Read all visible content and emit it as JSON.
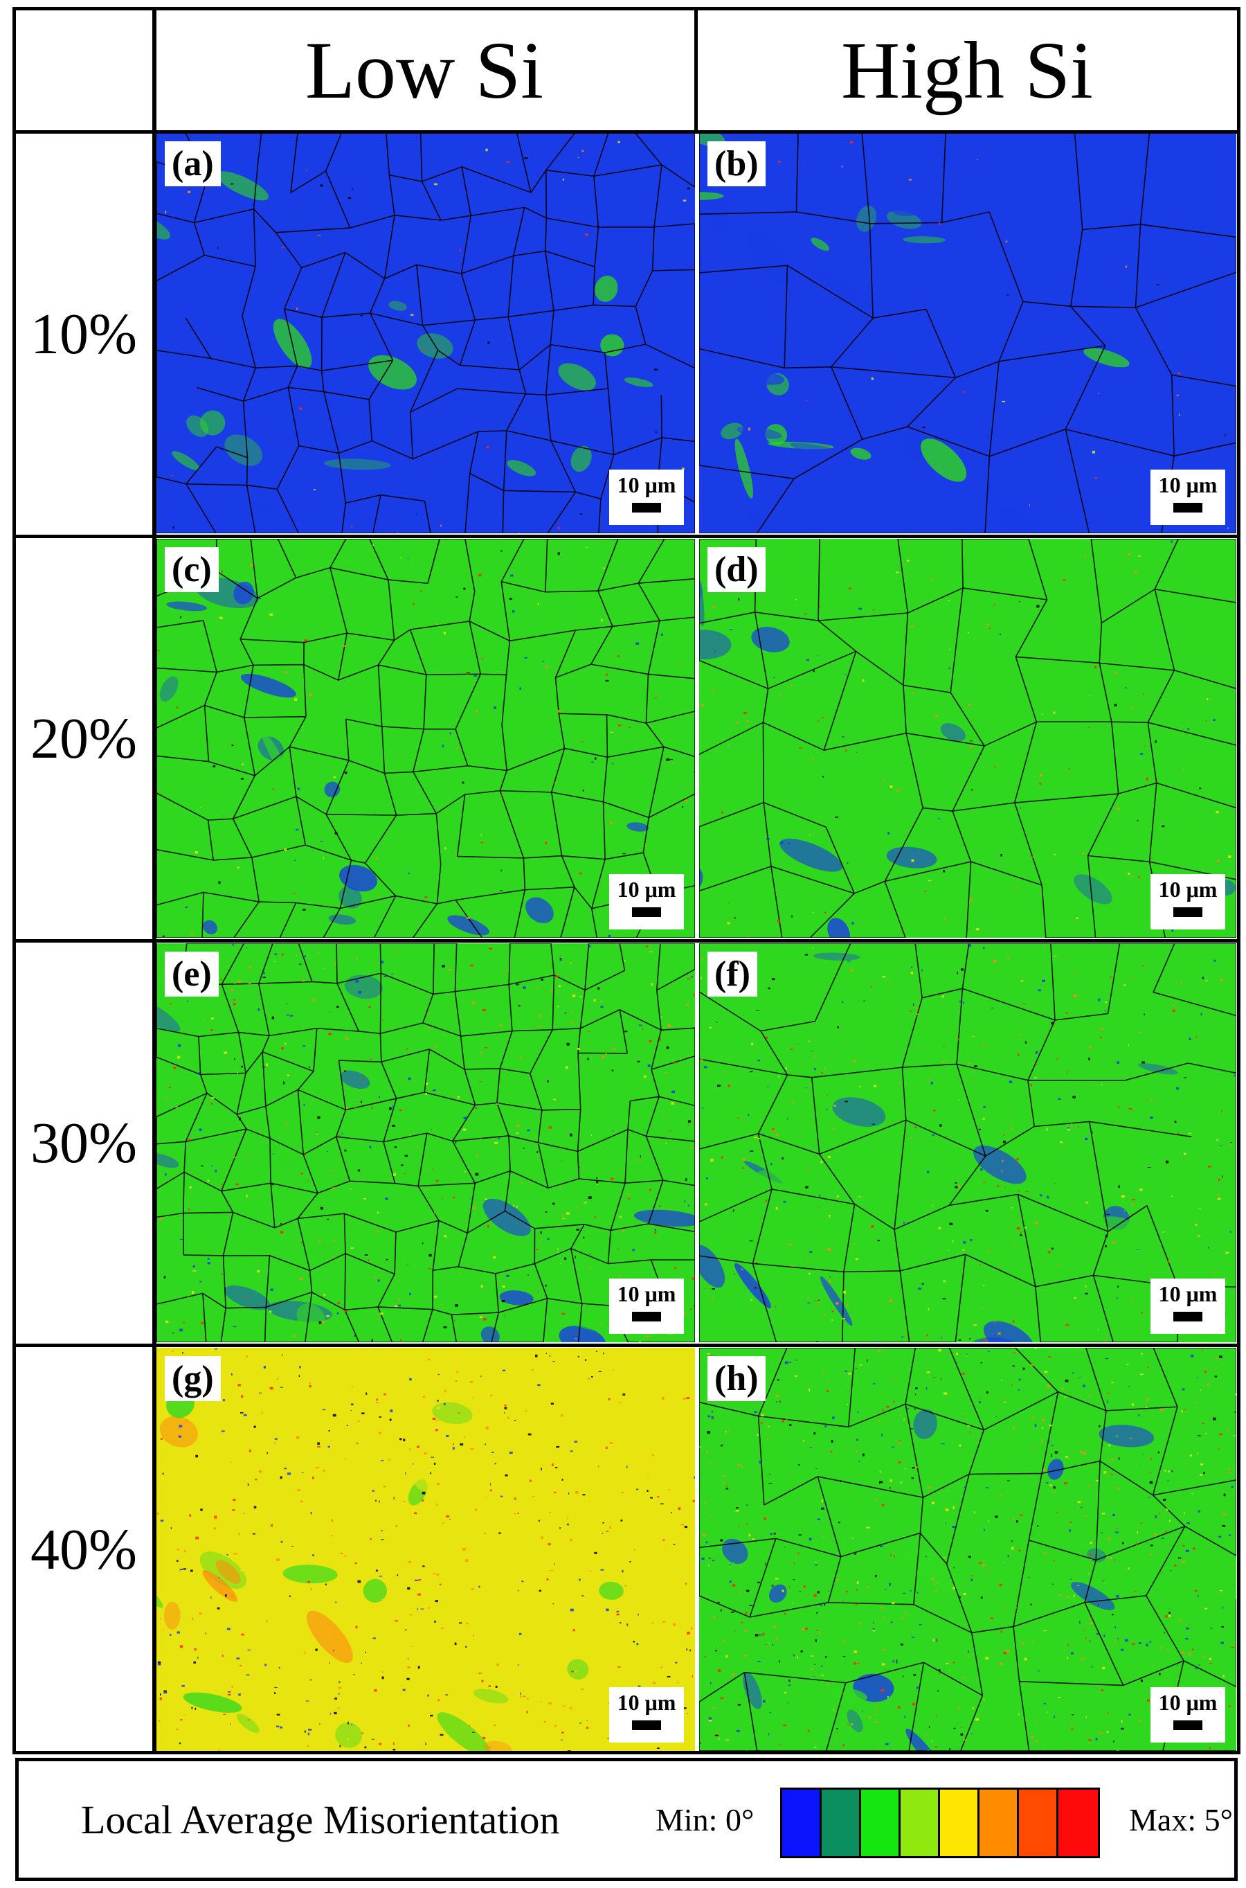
{
  "columns": [
    "Low Si",
    "High Si"
  ],
  "rows": [
    "10%",
    "20%",
    "30%",
    "40%"
  ],
  "panels": [
    {
      "label": "(a)",
      "scale": "10 μm"
    },
    {
      "label": "(b)",
      "scale": "10 μm"
    },
    {
      "label": "(c)",
      "scale": "10 μm"
    },
    {
      "label": "(d)",
      "scale": "10 μm"
    },
    {
      "label": "(e)",
      "scale": "10 μm"
    },
    {
      "label": "(f)",
      "scale": "10 μm"
    },
    {
      "label": "(g)",
      "scale": "10 μm"
    },
    {
      "label": "(h)",
      "scale": "10 μm"
    }
  ],
  "legend": {
    "title": "Local Average Misorientation",
    "min_label": "Min: 0°",
    "max_label": "Max: 5°",
    "colors": [
      "#0a14ff",
      "#0b8f5e",
      "#16e60f",
      "#8fe80e",
      "#ffe600",
      "#ff8c00",
      "#ff4a00",
      "#ff0a0a"
    ]
  },
  "colors": {
    "blue": "#1a3ce6",
    "green": "#2fd81e",
    "yellow": "#e8e410",
    "orange": "#ff8a10",
    "red": "#ff2a10",
    "boundary": "#000000"
  }
}
